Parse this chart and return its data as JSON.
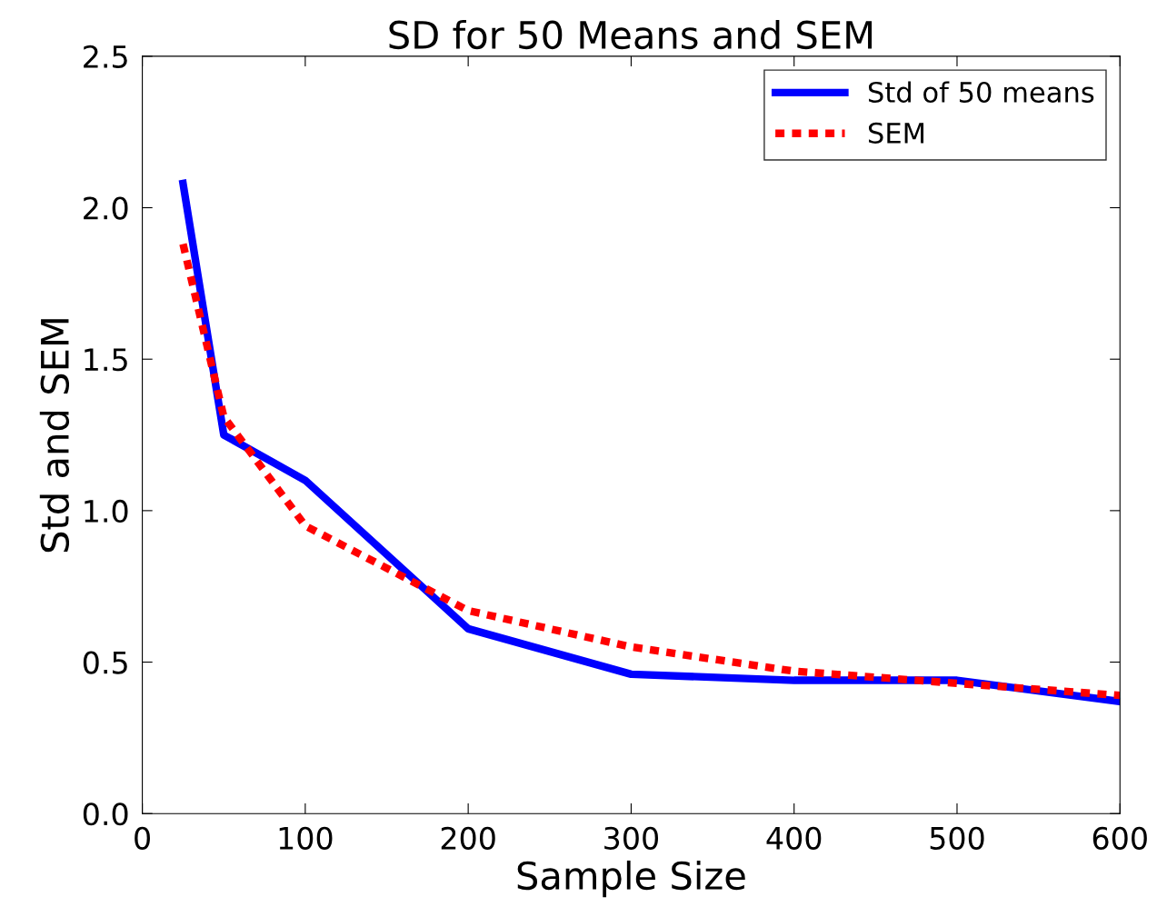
{
  "chart_data": {
    "type": "line",
    "title": "SD for 50 Means and SEM",
    "xlabel": "Sample Size",
    "ylabel": "Std and SEM",
    "x": [
      25,
      50,
      100,
      200,
      300,
      400,
      500,
      600
    ],
    "series": [
      {
        "name": "Std of 50 means",
        "color": "#0000ff",
        "values": [
          2.08,
          1.25,
          1.1,
          0.61,
          0.46,
          0.44,
          0.44,
          0.37
        ],
        "line_style": "solid"
      },
      {
        "name": "SEM",
        "color": "#ff0000",
        "values": [
          1.88,
          1.31,
          0.95,
          0.67,
          0.55,
          0.47,
          0.43,
          0.39
        ],
        "line_style": "dashed"
      }
    ],
    "xlim": [
      0,
      600
    ],
    "xticks": [
      0,
      100,
      200,
      300,
      400,
      500,
      600
    ],
    "ylim": [
      0,
      2.5
    ],
    "yticks": [
      {
        "value": 0,
        "label": "0.0"
      },
      0.5,
      {
        "value": 1,
        "label": "1.0"
      },
      1.5,
      {
        "value": 2,
        "label": "2.0"
      },
      2.5
    ],
    "grid": false,
    "legend": "top right",
    "marker": "none"
  }
}
